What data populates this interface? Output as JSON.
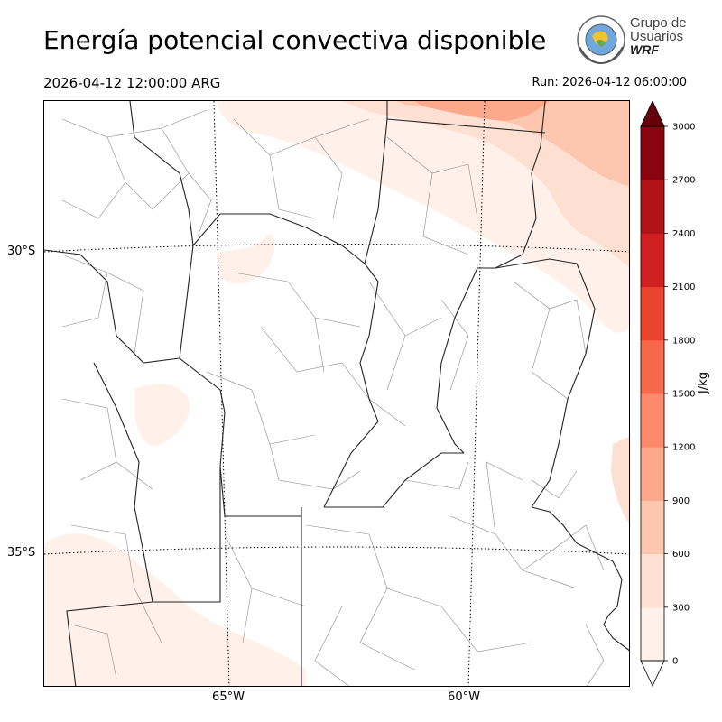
{
  "header": {
    "title": "Energía potencial convectiva disponible",
    "valid_time": "2026-04-12 12:00:00 ARG",
    "run_time": "Run: 2026-04-12 06:00:00"
  },
  "logo": {
    "line1": "Grupo de",
    "line2": "Usuarios",
    "line3": "WRF"
  },
  "map": {
    "lat_labels": [
      "30°S",
      "35°S"
    ],
    "lon_labels": [
      "65°W",
      "60°W"
    ],
    "field": "CAPE",
    "max_region": "north-east"
  },
  "colorbar": {
    "unit": "J/kg",
    "ticks": [
      "0",
      "300",
      "600",
      "900",
      "1200",
      "1500",
      "1800",
      "2100",
      "2400",
      "2700",
      "3000"
    ],
    "colors": [
      "#fff0ea",
      "#fee0d3",
      "#fcc6af",
      "#fca88a",
      "#fb896a",
      "#f6684c",
      "#ea4431",
      "#cf1f21",
      "#b01318",
      "#89040f"
    ],
    "over_color": "#67000d",
    "extend": "both"
  }
}
